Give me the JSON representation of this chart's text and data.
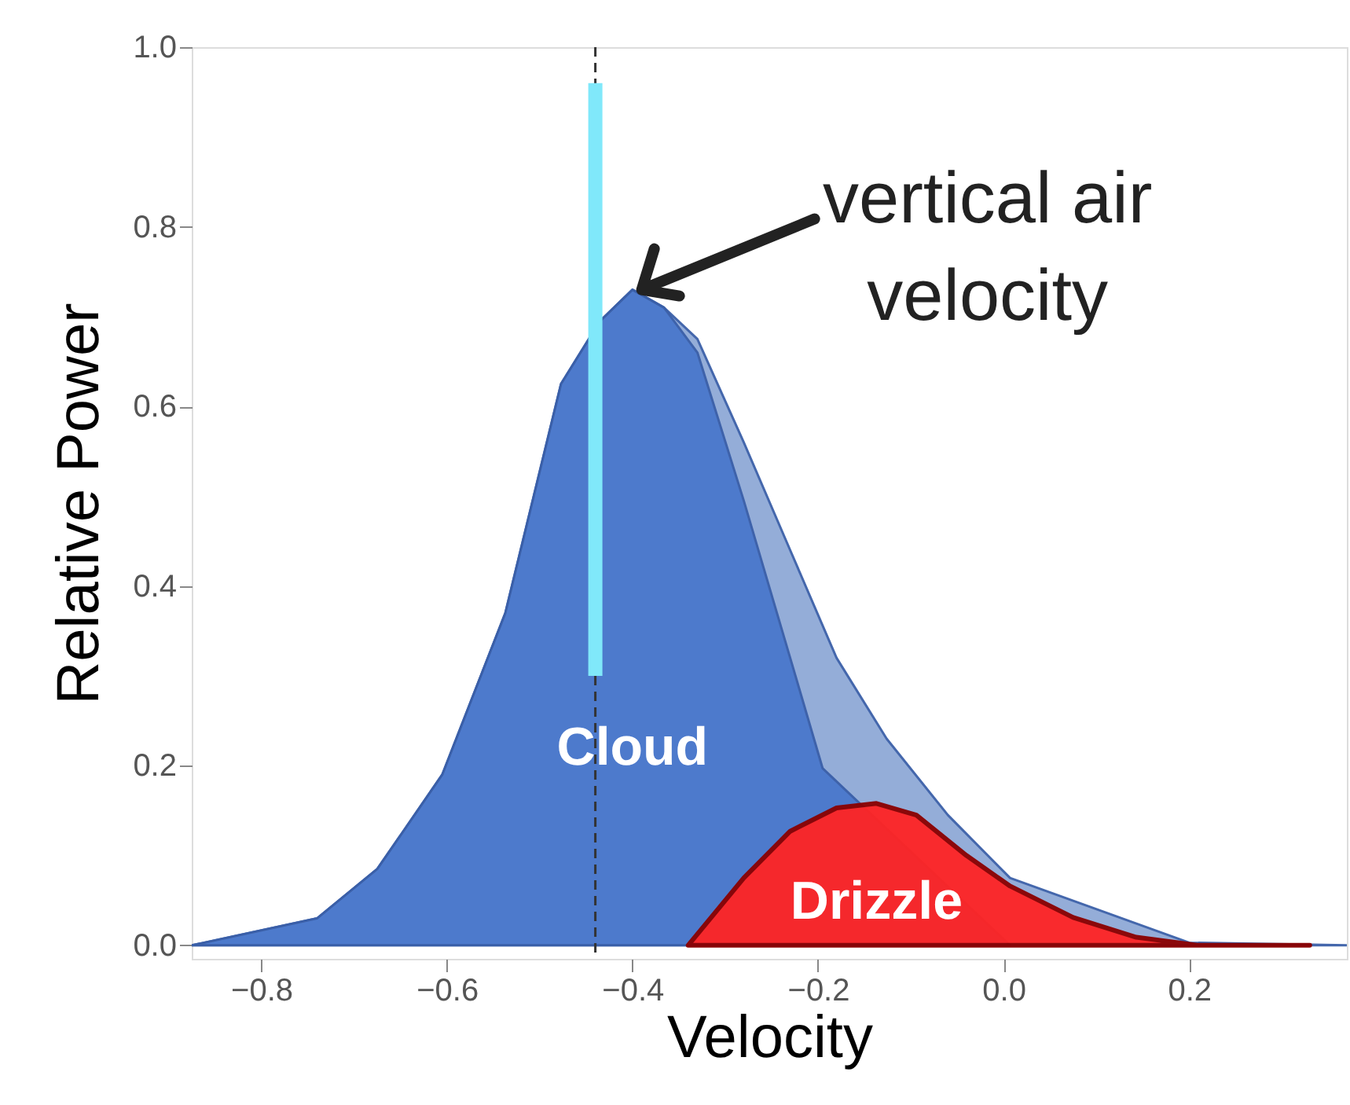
{
  "chart_data": {
    "type": "area",
    "xlabel": "Velocity",
    "ylabel": "Relative Power",
    "xlim": [
      -0.875,
      0.37
    ],
    "ylim": [
      -0.015,
      1.0
    ],
    "xticks": [
      -0.8,
      -0.6,
      -0.4,
      -0.2,
      {
        "value": 0,
        "label": "0.0"
      },
      0.2
    ],
    "yticks": [
      {
        "value": 0,
        "label": "0.0"
      },
      0.2,
      0.4,
      0.6,
      0.8,
      {
        "value": 1,
        "label": "1.0"
      }
    ],
    "grid": false,
    "series": [
      {
        "color": "#8fa9d6",
        "x": [
          -0.875,
          -0.74,
          -0.675,
          -0.605,
          -0.537,
          -0.477,
          -0.435,
          -0.4,
          -0.366,
          -0.33,
          -0.28,
          -0.23,
          -0.18,
          -0.126,
          -0.06,
          0.007,
          0.09,
          0.2,
          0.37
        ],
        "values": [
          0.0,
          0.03,
          0.085,
          0.19,
          0.37,
          0.625,
          0.695,
          0.73,
          0.71,
          0.675,
          0.56,
          0.44,
          0.32,
          0.23,
          0.145,
          0.075,
          null,
          0.003,
          0.0
        ]
      },
      {
        "name": "Cloud",
        "color": "#4a78cc",
        "x": [
          -0.875,
          -0.74,
          -0.675,
          -0.605,
          -0.537,
          -0.477,
          -0.435,
          -0.4,
          -0.366,
          -0.33,
          -0.28,
          -0.23,
          -0.195,
          -0.16,
          -0.126,
          -0.09,
          -0.03,
          0.007
        ],
        "values": [
          0.0,
          0.03,
          0.085,
          0.19,
          0.37,
          0.625,
          0.695,
          0.73,
          0.71,
          0.66,
          0.495,
          0.32,
          0.197,
          null,
          null,
          null,
          null,
          0.0
        ]
      },
      {
        "name": "Drizzle",
        "color": "#ff2424",
        "x": [
          -0.34,
          -0.28,
          -0.23,
          -0.18,
          -0.137,
          -0.094,
          -0.04,
          0.007,
          0.075,
          0.143,
          0.21,
          0.33
        ],
        "values": [
          0.0,
          0.075,
          0.127,
          0.153,
          0.158,
          0.145,
          0.1,
          0.066,
          0.031,
          0.009,
          0.0,
          0.0
        ]
      },
      {
        "type": "line",
        "color": "#80e8fa",
        "x": [
          -0.44,
          -0.44
        ],
        "values": [
          0.3,
          0.96
        ]
      }
    ],
    "ref_lines": [
      {
        "axis": "x",
        "value": -0.44,
        "color": "#333333",
        "line_style": "dashed"
      }
    ],
    "annotations": [
      {
        "text": "vertical air velocity",
        "x": -0.39,
        "y": 0.73
      }
    ]
  }
}
